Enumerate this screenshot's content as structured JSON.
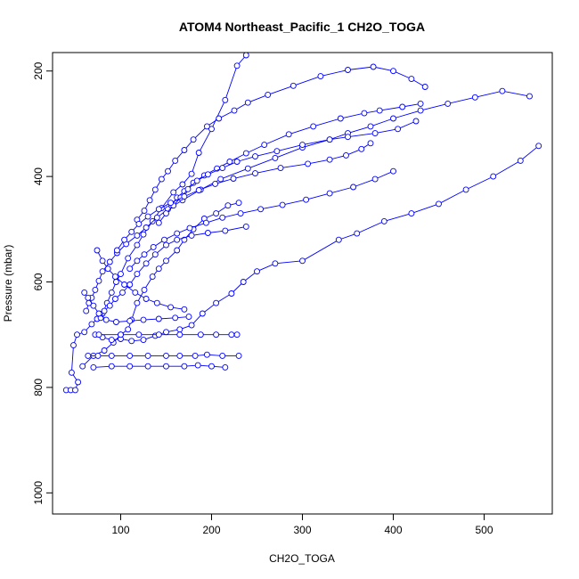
{
  "chart_data": {
    "type": "line",
    "title": "ATOM4 Northeast_Pacific_1 CH2O_TOGA",
    "xlabel": "CH2O_TOGA",
    "ylabel": "Pressure (mbar)",
    "xlim": [
      25,
      575
    ],
    "ylim": [
      1040,
      165
    ],
    "y_reversed": true,
    "x_ticks": [
      100,
      200,
      300,
      400,
      500
    ],
    "y_ticks": [
      200,
      400,
      600,
      800,
      1000
    ],
    "color": "#0000ff",
    "marker": "open-circle",
    "grid": false,
    "legend": "none",
    "series": [
      {
        "points": [
          [
            40,
            805
          ],
          [
            45,
            805
          ],
          [
            50,
            805
          ],
          [
            53,
            790
          ],
          [
            46,
            772
          ],
          [
            48,
            720
          ],
          [
            52,
            700
          ],
          [
            60,
            695
          ],
          [
            68,
            680
          ],
          [
            74,
            670
          ],
          [
            80,
            660
          ],
          [
            85,
            640
          ],
          [
            90,
            620
          ],
          [
            95,
            600
          ],
          [
            100,
            585
          ],
          [
            108,
            555
          ],
          [
            118,
            530
          ],
          [
            125,
            510
          ],
          [
            135,
            485
          ],
          [
            145,
            460
          ],
          [
            158,
            430
          ],
          [
            168,
            415
          ],
          [
            178,
            395
          ],
          [
            186,
            355
          ],
          [
            200,
            310
          ],
          [
            215,
            255
          ],
          [
            228,
            190
          ],
          [
            238,
            170
          ]
        ]
      },
      {
        "points": [
          [
            58,
            760
          ],
          [
            70,
            740
          ],
          [
            82,
            730
          ],
          [
            92,
            715
          ],
          [
            100,
            700
          ],
          [
            108,
            690
          ],
          [
            112,
            672
          ],
          [
            118,
            640
          ],
          [
            126,
            615
          ],
          [
            135,
            590
          ],
          [
            142,
            575
          ],
          [
            150,
            560
          ],
          [
            162,
            540
          ],
          [
            170,
            520
          ],
          [
            180,
            500
          ],
          [
            192,
            480
          ],
          [
            205,
            470
          ],
          [
            218,
            455
          ],
          [
            230,
            450
          ]
        ]
      },
      {
        "points": [
          [
            62,
            655
          ],
          [
            65,
            640
          ],
          [
            68,
            630
          ],
          [
            72,
            615
          ],
          [
            76,
            598
          ],
          [
            80,
            580
          ],
          [
            88,
            562
          ],
          [
            96,
            545
          ],
          [
            106,
            528
          ],
          [
            118,
            512
          ],
          [
            128,
            497
          ],
          [
            140,
            478
          ],
          [
            152,
            462
          ],
          [
            168,
            445
          ],
          [
            188,
            425
          ],
          [
            210,
            405
          ],
          [
            240,
            385
          ],
          [
            270,
            365
          ],
          [
            300,
            345
          ],
          [
            330,
            330
          ],
          [
            350,
            318
          ],
          [
            375,
            305
          ],
          [
            400,
            290
          ],
          [
            430,
            275
          ],
          [
            460,
            262
          ],
          [
            490,
            250
          ],
          [
            520,
            238
          ],
          [
            550,
            248
          ]
        ]
      },
      {
        "points": [
          [
            78,
            668
          ],
          [
            82,
            655
          ],
          [
            88,
            645
          ],
          [
            94,
            632
          ],
          [
            102,
            620
          ],
          [
            110,
            605
          ],
          [
            118,
            585
          ],
          [
            128,
            565
          ],
          [
            138,
            548
          ],
          [
            150,
            530
          ],
          [
            162,
            520
          ],
          [
            178,
            512
          ],
          [
            196,
            507
          ],
          [
            215,
            503
          ],
          [
            238,
            495
          ]
        ]
      },
      {
        "points": [
          [
            72,
            700
          ],
          [
            80,
            705
          ],
          [
            90,
            710
          ],
          [
            100,
            708
          ],
          [
            112,
            712
          ],
          [
            125,
            710
          ],
          [
            138,
            702
          ],
          [
            150,
            695
          ],
          [
            165,
            690
          ],
          [
            178,
            682
          ],
          [
            190,
            660
          ],
          [
            205,
            640
          ],
          [
            222,
            622
          ],
          [
            235,
            600
          ],
          [
            250,
            580
          ],
          [
            270,
            565
          ],
          [
            300,
            560
          ],
          [
            340,
            520
          ],
          [
            360,
            508
          ],
          [
            390,
            485
          ],
          [
            420,
            470
          ],
          [
            450,
            452
          ],
          [
            480,
            425
          ],
          [
            510,
            400
          ],
          [
            540,
            370
          ],
          [
            560,
            342
          ]
        ]
      },
      {
        "points": [
          [
            60,
            620
          ],
          [
            64,
            630
          ],
          [
            70,
            645
          ],
          [
            76,
            660
          ],
          [
            84,
            672
          ],
          [
            95,
            676
          ],
          [
            110,
            674
          ],
          [
            125,
            672
          ],
          [
            142,
            670
          ],
          [
            160,
            668
          ],
          [
            175,
            666
          ]
        ]
      },
      {
        "points": [
          [
            64,
            740
          ],
          [
            75,
            740
          ],
          [
            90,
            740
          ],
          [
            110,
            740
          ],
          [
            130,
            740
          ],
          [
            150,
            740
          ],
          [
            165,
            740
          ],
          [
            182,
            740
          ],
          [
            195,
            738
          ],
          [
            212,
            740
          ],
          [
            230,
            740
          ]
        ]
      },
      {
        "points": [
          [
            70,
            762
          ],
          [
            90,
            760
          ],
          [
            110,
            760
          ],
          [
            130,
            760
          ],
          [
            150,
            760
          ],
          [
            170,
            760
          ],
          [
            185,
            758
          ],
          [
            200,
            760
          ],
          [
            215,
            762
          ]
        ]
      },
      {
        "points": [
          [
            76,
            700
          ],
          [
            100,
            700
          ],
          [
            120,
            700
          ],
          [
            142,
            700
          ],
          [
            165,
            700
          ],
          [
            188,
            700
          ],
          [
            205,
            700
          ],
          [
            222,
            700
          ],
          [
            228,
            700
          ]
        ]
      },
      {
        "points": [
          [
            74,
            540
          ],
          [
            80,
            560
          ],
          [
            86,
            575
          ],
          [
            94,
            590
          ],
          [
            104,
            605
          ],
          [
            116,
            620
          ],
          [
            128,
            632
          ],
          [
            140,
            640
          ],
          [
            155,
            648
          ],
          [
            170,
            652
          ]
        ]
      },
      {
        "points": [
          [
            118,
            482
          ],
          [
            126,
            465
          ],
          [
            132,
            445
          ],
          [
            138,
            425
          ],
          [
            145,
            405
          ],
          [
            152,
            390
          ],
          [
            160,
            370
          ],
          [
            170,
            350
          ],
          [
            180,
            330
          ],
          [
            195,
            305
          ],
          [
            208,
            290
          ],
          [
            225,
            275
          ],
          [
            240,
            260
          ],
          [
            262,
            245
          ],
          [
            290,
            228
          ],
          [
            320,
            210
          ],
          [
            350,
            198
          ],
          [
            378,
            192
          ],
          [
            400,
            200
          ],
          [
            420,
            215
          ],
          [
            435,
            230
          ]
        ]
      },
      {
        "points": [
          [
            156,
            455
          ],
          [
            162,
            440
          ],
          [
            170,
            428
          ],
          [
            180,
            412
          ],
          [
            192,
            398
          ],
          [
            206,
            385
          ],
          [
            220,
            372
          ],
          [
            238,
            356
          ],
          [
            258,
            340
          ],
          [
            285,
            320
          ],
          [
            312,
            305
          ],
          [
            342,
            290
          ],
          [
            368,
            280
          ],
          [
            385,
            275
          ],
          [
            410,
            268
          ],
          [
            430,
            262
          ]
        ]
      },
      {
        "points": [
          [
            142,
            488
          ],
          [
            150,
            470
          ],
          [
            158,
            455
          ],
          [
            166,
            440
          ],
          [
            174,
            424
          ],
          [
            184,
            408
          ],
          [
            196,
            396
          ],
          [
            212,
            384
          ],
          [
            228,
            372
          ],
          [
            248,
            362
          ],
          [
            272,
            352
          ],
          [
            300,
            340
          ],
          [
            330,
            330
          ],
          [
            350,
            325
          ],
          [
            380,
            318
          ],
          [
            405,
            310
          ],
          [
            425,
            295
          ]
        ]
      },
      {
        "points": [
          [
            96,
            540
          ],
          [
            104,
            520
          ],
          [
            112,
            505
          ],
          [
            120,
            490
          ],
          [
            130,
            476
          ],
          [
            142,
            462
          ],
          [
            155,
            450
          ],
          [
            170,
            438
          ],
          [
            186,
            426
          ],
          [
            204,
            414
          ],
          [
            224,
            404
          ],
          [
            248,
            394
          ],
          [
            276,
            384
          ],
          [
            306,
            376
          ],
          [
            330,
            368
          ],
          [
            348,
            360
          ],
          [
            365,
            348
          ],
          [
            375,
            337
          ]
        ]
      },
      {
        "points": [
          [
            110,
            575
          ],
          [
            118,
            560
          ],
          [
            126,
            548
          ],
          [
            136,
            534
          ],
          [
            148,
            520
          ],
          [
            162,
            508
          ],
          [
            176,
            498
          ],
          [
            194,
            488
          ],
          [
            212,
            478
          ],
          [
            232,
            470
          ],
          [
            254,
            462
          ],
          [
            278,
            454
          ],
          [
            304,
            444
          ],
          [
            330,
            432
          ],
          [
            356,
            420
          ],
          [
            380,
            405
          ],
          [
            400,
            390
          ]
        ]
      }
    ]
  }
}
